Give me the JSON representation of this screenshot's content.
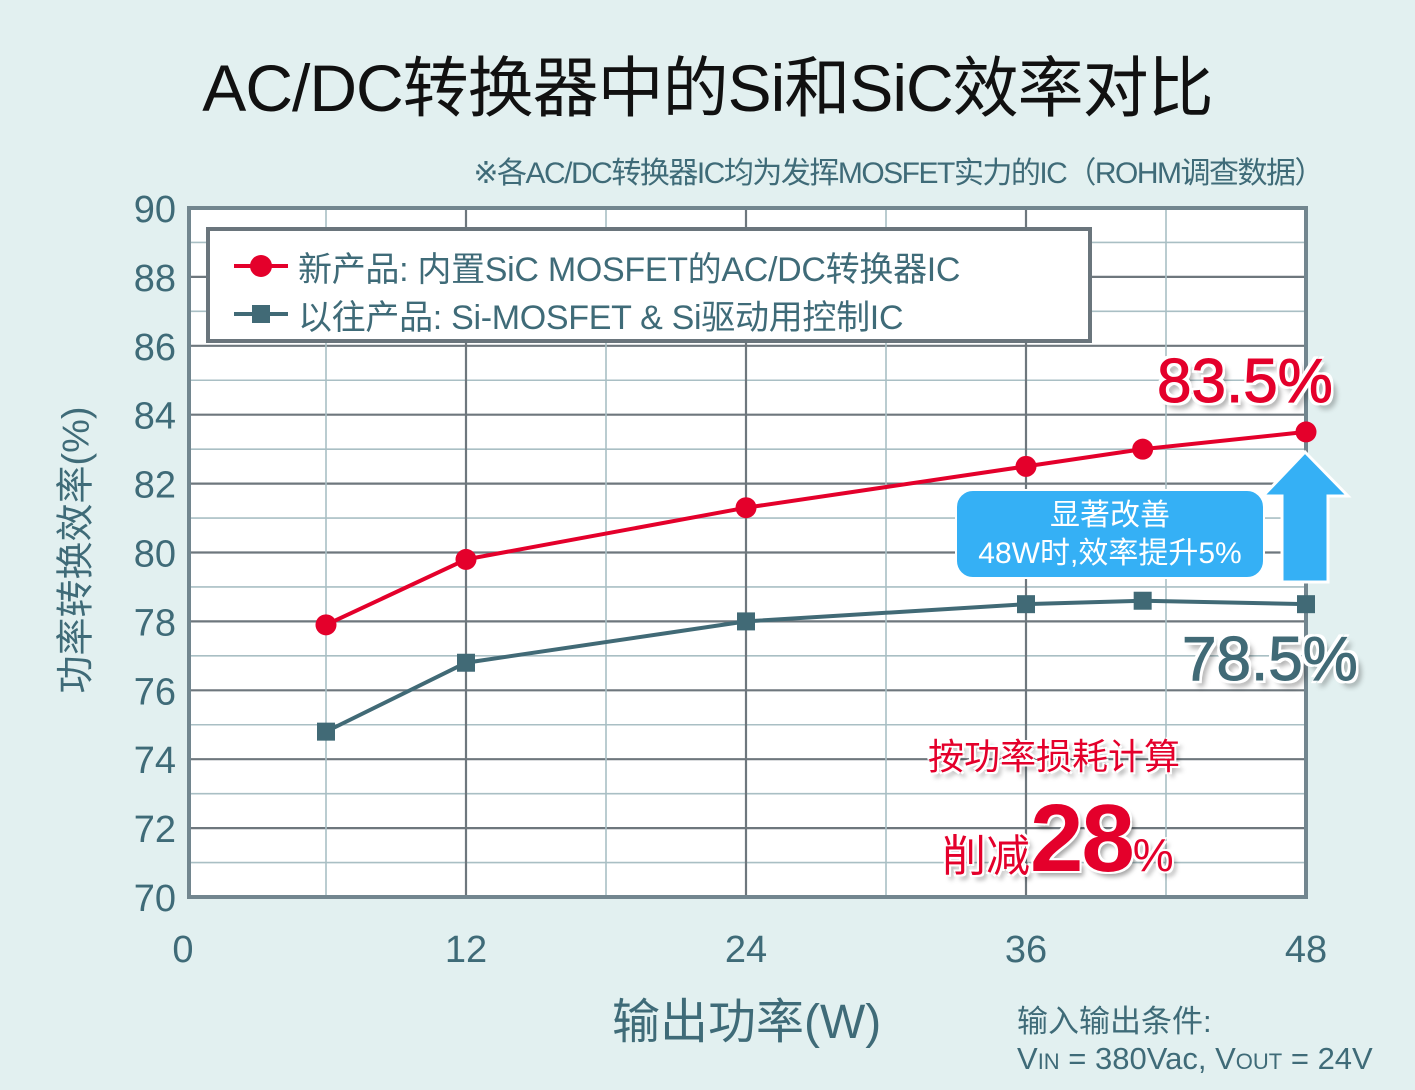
{
  "header": {
    "title": "AC/DC转换器中的Si和SiC效率对比",
    "subtitle": "※各AC/DC转换器IC均为发挥MOSFET实力的IC（ROHM调查数据）"
  },
  "legend": {
    "new_label": "新产品: 内置SiC MOSFET的AC/DC转换器IC",
    "old_label": "以往产品: Si-MOSFET & Si驱动用控制IC"
  },
  "axes": {
    "ylabel": "功率转换效率(%)",
    "xlabel": "输出功率(W)"
  },
  "annotations": {
    "new_value": "83.5%",
    "old_value": "78.5%",
    "callout_line1": "显著改善",
    "callout_line2": "48W时,效率提升5%",
    "loss_heading": "按功率损耗计算",
    "loss_prefix": "削减",
    "loss_number": "28",
    "loss_suffix": "%"
  },
  "conditions": {
    "heading": "输入输出条件:",
    "vin_v": "V",
    "vin_sub": "IN",
    "vin_val": " = 380Vac, ",
    "vout_v": "V",
    "vout_sub": "OUT",
    "vout_val": " = 24V"
  },
  "colors": {
    "new": "#e4002b",
    "old": "#416a76",
    "callout": "#35b0f5",
    "axis_text": "#3f6b78",
    "background": "#e2f0f0"
  },
  "chart_data": {
    "type": "line",
    "title": "AC/DC转换器中的Si和SiC效率对比",
    "subtitle": "※各AC/DC转换器IC均为发挥MOSFET实力的IC（ROHM调查数据）",
    "xlabel": "输出功率(W)",
    "ylabel": "功率转换效率(%)",
    "x": [
      6,
      12,
      24,
      36,
      41,
      48
    ],
    "xlim": [
      0,
      48
    ],
    "ylim": [
      70,
      90
    ],
    "xticks": [
      0,
      12,
      24,
      36,
      48
    ],
    "yticks": [
      70,
      72,
      74,
      76,
      78,
      80,
      82,
      84,
      86,
      88,
      90
    ],
    "grid": true,
    "legend_position": "upper left",
    "series": [
      {
        "name": "新产品: 内置SiC MOSFET的AC/DC转换器IC",
        "marker": "circle",
        "color": "#e4002b",
        "values": [
          77.9,
          79.8,
          81.3,
          82.5,
          83.0,
          83.5
        ]
      },
      {
        "name": "以往产品: Si-MOSFET & Si驱动用控制IC",
        "marker": "square",
        "color": "#416a76",
        "values": [
          74.8,
          76.8,
          78.0,
          78.5,
          78.6,
          78.5
        ]
      }
    ],
    "annotations": [
      "83.5%",
      "78.5%",
      "显著改善 48W时,效率提升5%",
      "按功率损耗计算 削减28%"
    ]
  }
}
